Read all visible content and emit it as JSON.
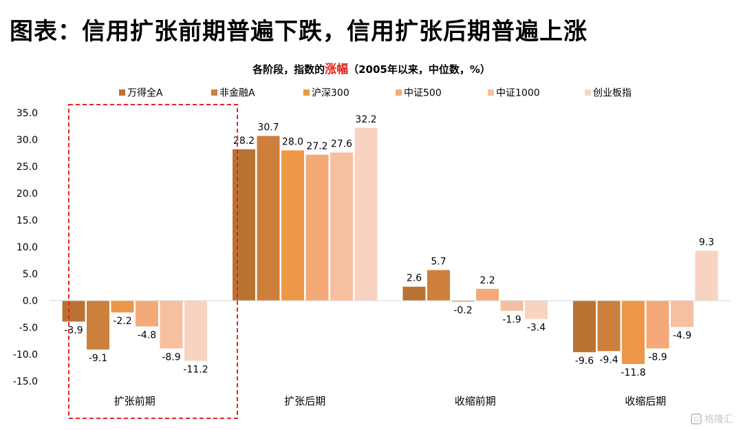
{
  "page": {
    "headline": "图表：信用扩张前期普遍下跌，信用扩张后期普遍上涨",
    "watermark": "格隆汇"
  },
  "chart_data": {
    "type": "bar",
    "title_prefix": "各阶段，指数的",
    "title_highlight": "涨幅",
    "title_suffix": "（2005年以来，中位数，%）",
    "categories": [
      "扩张前期",
      "扩张后期",
      "收缩前期",
      "收缩后期"
    ],
    "series": [
      {
        "name": "万得全A",
        "color": "#b87333",
        "values": [
          -3.9,
          28.2,
          2.6,
          -9.6
        ]
      },
      {
        "name": "非金融A",
        "color": "#cd7f3c",
        "values": [
          -9.1,
          30.7,
          5.7,
          -9.4
        ]
      },
      {
        "name": "沪深300",
        "color": "#ed9748",
        "values": [
          -2.2,
          28.0,
          -0.2,
          -11.8
        ]
      },
      {
        "name": "中证500",
        "color": "#f3aa78",
        "values": [
          -4.8,
          27.2,
          2.2,
          -8.9
        ]
      },
      {
        "name": "中证1000",
        "color": "#f5bfa0",
        "values": [
          -8.9,
          27.6,
          -1.9,
          -4.9
        ]
      },
      {
        "name": "创业板指",
        "color": "#f8d3c1",
        "values": [
          -11.2,
          32.2,
          -3.4,
          9.3
        ]
      }
    ],
    "ylim": [
      -15,
      35
    ],
    "yticks": [
      "35.0",
      "30.0",
      "25.0",
      "20.0",
      "15.0",
      "10.0",
      "5.0",
      "0.0",
      "-5.0",
      "-10.0",
      "-15.0"
    ],
    "legend_position": "top",
    "grid": false,
    "highlight_box": {
      "category": "扩张前期",
      "color": "#e8231d",
      "style": "dashed"
    }
  }
}
